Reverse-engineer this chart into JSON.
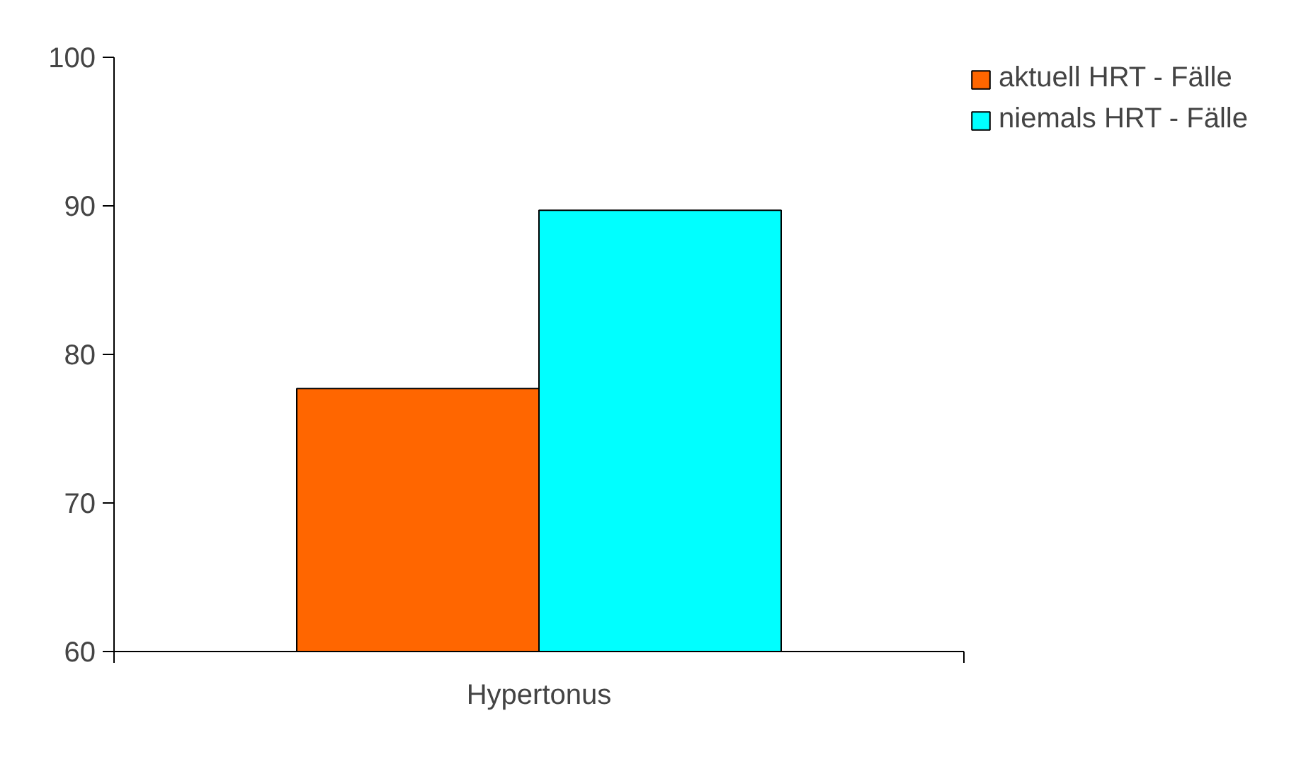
{
  "chart_data": {
    "type": "bar",
    "categories": [
      "Hypertonus"
    ],
    "series": [
      {
        "name": "aktuell HRT - Fälle",
        "color": "#ff6600",
        "values": [
          77.7
        ]
      },
      {
        "name": "niemals HRT - Fälle",
        "color": "#00ffff",
        "values": [
          89.7
        ]
      }
    ],
    "ylim": [
      60,
      100
    ],
    "yticks": [
      60,
      70,
      80,
      90,
      100
    ],
    "grid": false,
    "legend": "top right"
  }
}
